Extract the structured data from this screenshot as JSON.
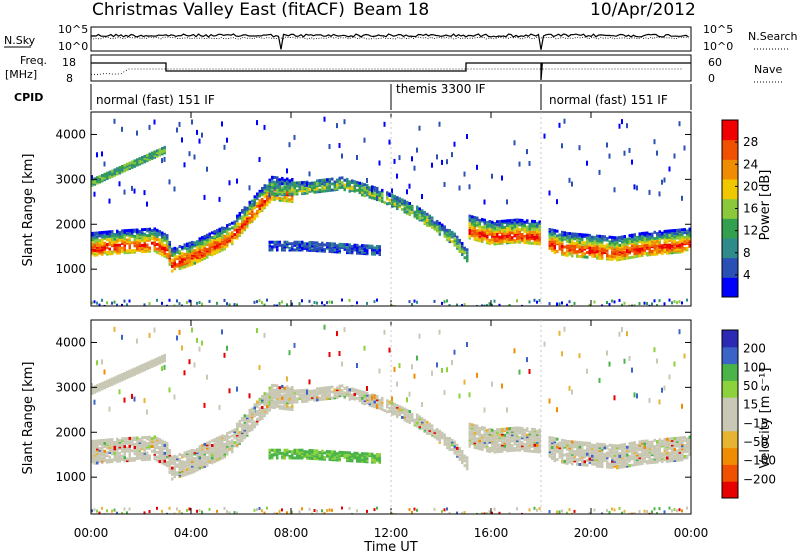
{
  "header": {
    "station": "Christmas Valley East (fitACF)",
    "beam": "Beam 18",
    "date": "10/Apr/2012"
  },
  "panels": {
    "nsky_label": "N.Sky",
    "nsearch_label": "N.Search",
    "nsky_ticks": [
      "10^5",
      "10^0"
    ],
    "nsky_right_ticks": [
      "10^5",
      "10^0"
    ],
    "freq_label_top": "Freq.",
    "freq_label_bot": "[MHz]",
    "freq_ticks": [
      "18",
      "8"
    ],
    "nave_label": "Nave",
    "nave_ticks": [
      "60",
      "0"
    ],
    "cpid_label": "CPID",
    "cpid_segments": [
      {
        "label": "normal (fast) 151 IF",
        "start_h": 0.0,
        "end_h": 12.0
      },
      {
        "label": "themis 3300 IF",
        "start_h": 12.0,
        "end_h": 18.0
      },
      {
        "label": "normal (fast) 151 IF",
        "start_h": 18.0,
        "end_h": 24.0
      }
    ]
  },
  "chart_data": [
    {
      "type": "heatmap",
      "name": "power",
      "ylabel": "Slant Range [km]",
      "xlabel": "Time UT",
      "xlim": [
        0,
        24
      ],
      "ylim": [
        180,
        4500
      ],
      "y_ticks": [
        "1000",
        "2000",
        "3000",
        "4000"
      ],
      "x_ticks": [
        "00:00",
        "04:00",
        "08:00",
        "12:00",
        "16:00",
        "20:00",
        "00:00"
      ],
      "colorbar": {
        "label": "Power [dB]",
        "ticks": [
          "4",
          "8",
          "12",
          "16",
          "20",
          "24",
          "28"
        ],
        "colors": [
          "#0000ff",
          "#2a4fb5",
          "#2f8a8a",
          "#33a050",
          "#8cc83c",
          "#f0c800",
          "#f08c00",
          "#f05000",
          "#f00000"
        ]
      },
      "bands": [
        {
          "desc": "lower echo band",
          "points": [
            [
              0.0,
              1600
            ],
            [
              1.0,
              1650
            ],
            [
              2.5,
              1700
            ],
            [
              3.0,
              1550
            ],
            [
              3.2,
              1250
            ],
            [
              4.0,
              1400
            ],
            [
              5.5,
              1800
            ],
            [
              6.8,
              2600
            ],
            [
              7.2,
              2850
            ],
            [
              8.0,
              2800
            ]
          ],
          "level": "high"
        },
        {
          "desc": "morning arc",
          "points": [
            [
              7.0,
              2800
            ],
            [
              8.5,
              2850
            ],
            [
              10.0,
              2950
            ],
            [
              11.5,
              2700
            ],
            [
              13.0,
              2300
            ],
            [
              14.5,
              1700
            ],
            [
              15.0,
              1350
            ]
          ],
          "level": "mid"
        },
        {
          "desc": "mid band",
          "points": [
            [
              7.0,
              1550
            ],
            [
              8.5,
              1550
            ],
            [
              10.0,
              1500
            ],
            [
              11.5,
              1450
            ]
          ],
          "level": "low"
        },
        {
          "desc": "afternoon band",
          "points": [
            [
              15.0,
              2000
            ],
            [
              16.0,
              1850
            ],
            [
              17.0,
              1900
            ],
            [
              18.0,
              1850
            ]
          ],
          "level": "high"
        },
        {
          "desc": "evening band",
          "points": [
            [
              18.2,
              1700
            ],
            [
              19.0,
              1600
            ],
            [
              20.0,
              1550
            ],
            [
              21.0,
              1500
            ],
            [
              22.0,
              1600
            ],
            [
              23.0,
              1650
            ],
            [
              24.0,
              1700
            ]
          ],
          "level": "high"
        }
      ]
    },
    {
      "type": "heatmap",
      "name": "velocity",
      "ylabel": "Slant Range [km]",
      "xlabel": "Time UT",
      "xlim": [
        0,
        24
      ],
      "ylim": [
        180,
        4500
      ],
      "y_ticks": [
        "1000",
        "2000",
        "3000",
        "4000"
      ],
      "x_ticks": [
        "00:00",
        "04:00",
        "08:00",
        "12:00",
        "16:00",
        "20:00",
        "00:00"
      ],
      "colorbar": {
        "label": "Velocity [m s⁻¹]",
        "ticks": [
          "200",
          "100",
          "50",
          "15",
          "−15",
          "−50",
          "−100",
          "−200"
        ],
        "colors": [
          "#2a2ab4",
          "#3c64c8",
          "#4ab44a",
          "#8cd23c",
          "#c8c8b4",
          "#c8c8b4",
          "#e6b432",
          "#f08c00",
          "#f05000",
          "#e60000"
        ]
      }
    }
  ]
}
